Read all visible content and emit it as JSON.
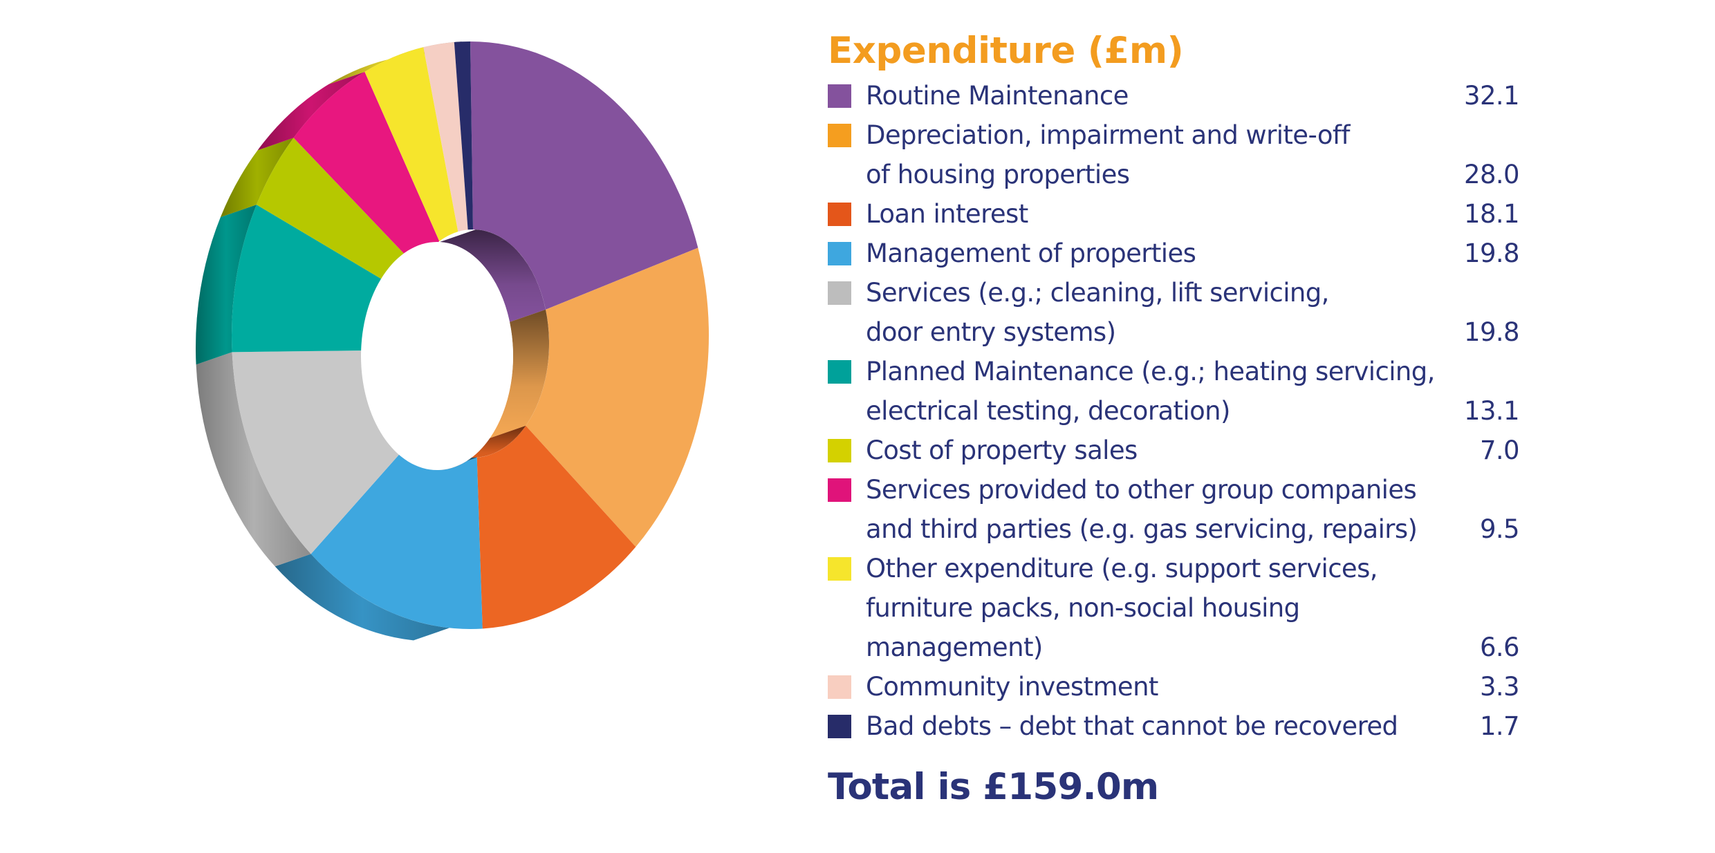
{
  "chart_data": {
    "type": "pie",
    "title": "Expenditure (£m)",
    "categories": [
      [
        "Routine Maintenance"
      ],
      [
        "Depreciation, impairment and write-off",
        "of housing properties"
      ],
      [
        "Loan interest"
      ],
      [
        "Management of properties"
      ],
      [
        "Services (e.g.; cleaning, lift servicing,",
        "door entry systems)"
      ],
      [
        "Planned Maintenance (e.g.; heating servicing,",
        "electrical testing, decoration)"
      ],
      [
        "Cost of property sales"
      ],
      [
        "Services provided to other group companies",
        "and third parties (e.g. gas servicing, repairs)"
      ],
      [
        "Other expenditure (e.g. support services,",
        "furniture packs, non-social housing",
        "management)"
      ],
      [
        "Community investment"
      ],
      [
        "Bad debts – debt that cannot be recovered"
      ]
    ],
    "value_labels": [
      "32.1",
      "28.0",
      "18.1",
      "19.8",
      "19.8",
      "13.1",
      "7.0",
      "9.5",
      "6.6",
      "3.3",
      "1.7"
    ],
    "values": [
      32.1,
      28.0,
      18.1,
      19.8,
      19.8,
      13.1,
      7.0,
      9.5,
      6.6,
      3.3,
      1.7
    ],
    "colors": [
      "#84529d",
      "#f5a854",
      "#ec6623",
      "#3ea7df",
      "#c8c8c8",
      "#00ab9f",
      "#b6c800",
      "#e8177f",
      "#f6e52c",
      "#f5cfc4",
      "#272c69"
    ],
    "legend_colors": [
      "#84529d",
      "#f59e1f",
      "#e4561a",
      "#3ea7df",
      "#bdbdbd",
      "#00a19a",
      "#d4d100",
      "#e0137a",
      "#f6e52c",
      "#f8cec0",
      "#272c69"
    ],
    "chart_style": "3d-donut",
    "legend_position": "right"
  },
  "total_text": "Total is £159.0m"
}
